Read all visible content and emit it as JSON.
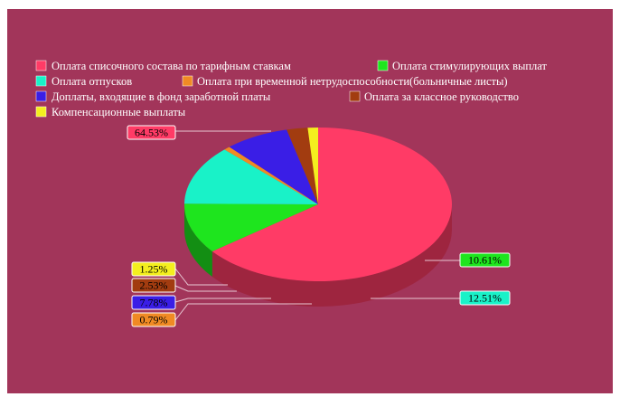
{
  "chart_data": {
    "type": "pie",
    "style": "3d",
    "background": "#a2355a",
    "legend_position": "top-left",
    "series": [
      {
        "name": "Оплата списочного состава по  тарифным ставкам",
        "value": 64.53,
        "label": "64.53%",
        "color": "#ff3b66"
      },
      {
        "name": "Оплата стимулирующих выплат",
        "value": 10.61,
        "label": "10.61%",
        "color": "#1ee51e"
      },
      {
        "name": "Оплата отпусков",
        "value": 12.51,
        "label": "12.51%",
        "color": "#19f2c8"
      },
      {
        "name": "Оплата при временной нетрудоспособности(больничные листы)",
        "value": 0.79,
        "label": "0.79%",
        "color": "#f08a24"
      },
      {
        "name": "Доплаты, входящие в фонд заработной платы",
        "value": 7.78,
        "label": "7.78%",
        "color": "#3a1ee6"
      },
      {
        "name": "Оплата за классное руководство",
        "value": 2.53,
        "label": "2.53%",
        "color": "#a23c10"
      },
      {
        "name": "Компенсационные выплаты",
        "value": 1.25,
        "label": "1.25%",
        "color": "#f4ef1e"
      }
    ]
  }
}
